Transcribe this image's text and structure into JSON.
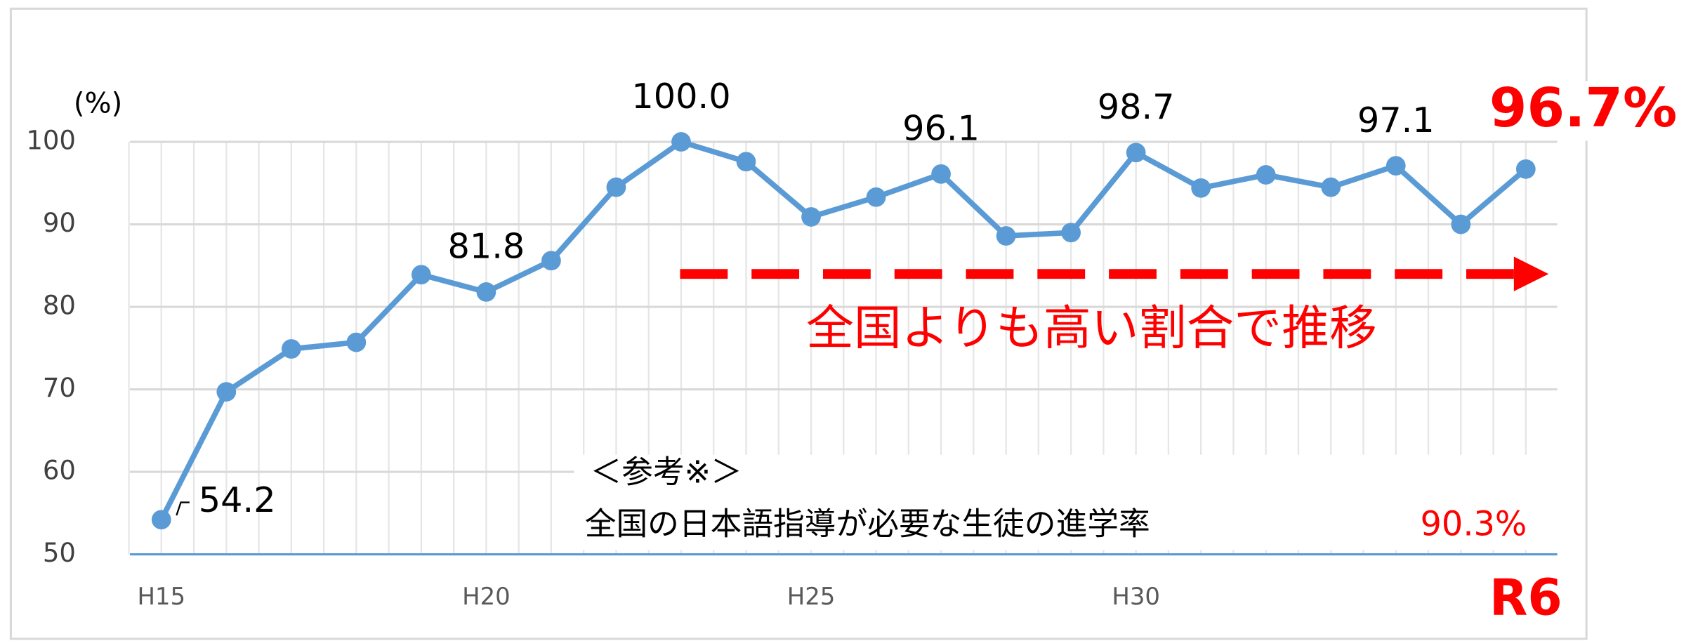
{
  "chart_data": {
    "type": "line",
    "y_label": "(%)",
    "categories": [
      "H15",
      null,
      null,
      null,
      null,
      "H20",
      null,
      null,
      null,
      null,
      "H25",
      null,
      null,
      null,
      null,
      "H30",
      null,
      null,
      null,
      null,
      null,
      "R6"
    ],
    "series": [
      {
        "name": null,
        "color": "#5b9bd5",
        "values": [
          54.2,
          69.7,
          74.9,
          75.7,
          83.9,
          81.8,
          85.6,
          94.5,
          100.0,
          97.6,
          90.9,
          93.3,
          96.1,
          88.6,
          89.0,
          98.7,
          94.4,
          96.0,
          94.5,
          97.1,
          90.0,
          96.7
        ],
        "value_labels": [
          "54.2",
          null,
          null,
          null,
          null,
          "81.8",
          null,
          null,
          "100.0",
          null,
          null,
          null,
          "96.1",
          null,
          null,
          "98.7",
          null,
          null,
          null,
          "97.1",
          null,
          "96.7%"
        ]
      }
    ],
    "ylim": [
      50,
      100
    ],
    "yticks": [
      50,
      60,
      70,
      80,
      90,
      100
    ],
    "grid": true,
    "annotations": [
      "全国よりも高い割合で推移",
      "＜参考※＞",
      "全国の日本語指導が必要な生徒の進学率",
      "90.3%"
    ]
  }
}
